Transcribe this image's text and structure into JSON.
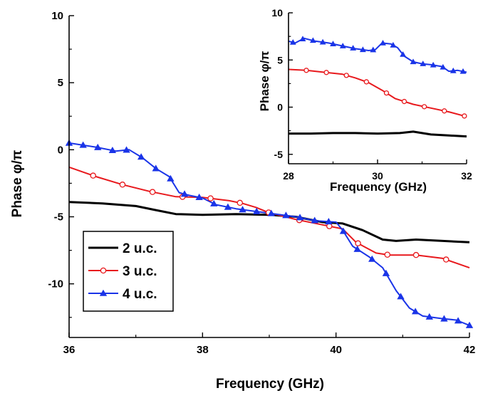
{
  "chart_data": [
    {
      "type": "line",
      "xlabel": "Frequency (GHz)",
      "ylabel": "Phase φ/π",
      "xlim": [
        36,
        42
      ],
      "ylim": [
        -14,
        10
      ],
      "xticks": [
        36,
        38,
        40,
        42
      ],
      "yticks": [
        10,
        5,
        0,
        -5,
        -10
      ],
      "legend": "bottom-left",
      "grid": false,
      "series": [
        {
          "name": "2 u.c.",
          "color": "#000000",
          "marker": "none",
          "x": [
            36,
            36.5,
            37,
            37.3,
            37.6,
            38,
            38.5,
            39,
            39.4,
            39.8,
            40.1,
            40.4,
            40.7,
            40.9,
            41.2,
            41.6,
            42
          ],
          "y": [
            -3.9,
            -4.0,
            -4.2,
            -4.5,
            -4.8,
            -4.85,
            -4.8,
            -4.85,
            -5.0,
            -5.4,
            -5.5,
            -6.0,
            -6.7,
            -6.8,
            -6.7,
            -6.8,
            -6.9
          ]
        },
        {
          "name": "3 u.c.",
          "color": "#e8191d",
          "marker": "circle",
          "x": [
            36,
            36.4,
            36.8,
            37.2,
            37.6,
            38,
            38.4,
            38.6,
            38.8,
            39,
            39.4,
            39.8,
            40.1,
            40.3,
            40.6,
            40.8,
            41,
            41.2,
            41.6,
            42
          ],
          "y": [
            -1.3,
            -2.0,
            -2.6,
            -3.1,
            -3.5,
            -3.55,
            -3.8,
            -4.0,
            -4.3,
            -4.7,
            -5.2,
            -5.6,
            -5.9,
            -6.9,
            -7.7,
            -7.85,
            -7.85,
            -7.85,
            -8.1,
            -8.8
          ],
          "markers_x": [
            36.36,
            36.8,
            37.25,
            37.7,
            38.12,
            38.56,
            38.99,
            39.45,
            39.9,
            40.33,
            40.77,
            41.2,
            41.65
          ]
        },
        {
          "name": "4 u.c.",
          "color": "#1a34e8",
          "marker": "triangle",
          "x": [
            36,
            36.4,
            36.7,
            36.9,
            37.1,
            37.3,
            37.5,
            37.65,
            37.8,
            38,
            38.2,
            38.5,
            38.8,
            39.1,
            39.4,
            39.7,
            40,
            40.1,
            40.25,
            40.5,
            40.7,
            40.9,
            41.1,
            41.3,
            41.6,
            41.8,
            42
          ],
          "y": [
            0.5,
            0.2,
            -0.1,
            0.0,
            -0.6,
            -1.4,
            -2.0,
            -3.2,
            -3.4,
            -3.6,
            -4.1,
            -4.4,
            -4.6,
            -4.8,
            -5.0,
            -5.3,
            -5.4,
            -6.0,
            -7.2,
            -8.0,
            -8.8,
            -10.5,
            -11.8,
            -12.4,
            -12.6,
            -12.7,
            -13.1
          ],
          "markers_x": [
            36.0,
            36.21,
            36.43,
            36.65,
            36.86,
            37.08,
            37.3,
            37.52,
            37.73,
            37.95,
            38.17,
            38.38,
            38.6,
            38.81,
            39.03,
            39.25,
            39.46,
            39.68,
            39.89,
            40.11,
            40.32,
            40.54,
            40.75,
            40.97,
            41.19,
            41.4,
            41.62,
            41.83,
            42.0
          ]
        }
      ]
    },
    {
      "type": "line",
      "xlabel": "Frequency (GHz)",
      "ylabel": "Phase φ/π",
      "xlim": [
        28,
        32
      ],
      "ylim": [
        -6,
        10
      ],
      "xticks": [
        28,
        30,
        32
      ],
      "yticks": [
        10,
        5,
        0,
        -5
      ],
      "grid": false,
      "series": [
        {
          "name": "2 u.c.",
          "color": "#000000",
          "marker": "none",
          "x": [
            28,
            28.5,
            29,
            29.5,
            30,
            30.5,
            30.8,
            31.2,
            31.6,
            32
          ],
          "y": [
            -2.8,
            -2.8,
            -2.75,
            -2.75,
            -2.8,
            -2.75,
            -2.6,
            -2.9,
            -3.0,
            -3.1
          ]
        },
        {
          "name": "3 u.c.",
          "color": "#e8191d",
          "marker": "circle",
          "x": [
            28,
            28.4,
            28.8,
            29.2,
            29.5,
            29.8,
            30.1,
            30.4,
            30.8,
            31.2,
            31.6,
            32
          ],
          "y": [
            4.0,
            3.9,
            3.7,
            3.5,
            3.1,
            2.6,
            1.8,
            0.9,
            0.3,
            -0.1,
            -0.5,
            -1.0
          ],
          "markers_x": [
            28.4,
            28.85,
            29.3,
            29.75,
            30.2,
            30.6,
            31.05,
            31.5,
            31.95
          ]
        },
        {
          "name": "4 u.c.",
          "color": "#1a34e8",
          "marker": "triangle",
          "x": [
            28,
            28.15,
            28.35,
            28.6,
            28.9,
            29.2,
            29.5,
            29.8,
            29.95,
            30.1,
            30.3,
            30.45,
            30.6,
            30.8,
            31.0,
            31.2,
            31.45,
            31.6,
            31.8,
            32
          ],
          "y": [
            7.0,
            6.8,
            7.3,
            7.0,
            6.8,
            6.5,
            6.2,
            6.0,
            6.1,
            6.8,
            6.7,
            6.3,
            5.4,
            4.8,
            4.6,
            4.5,
            4.3,
            3.8,
            3.9,
            3.7
          ],
          "markers_x": [
            28.1,
            28.32,
            28.55,
            28.77,
            29.0,
            29.22,
            29.45,
            29.67,
            29.9,
            30.12,
            30.35,
            30.57,
            30.8,
            31.02,
            31.25,
            31.47,
            31.7,
            31.92
          ]
        }
      ]
    }
  ]
}
